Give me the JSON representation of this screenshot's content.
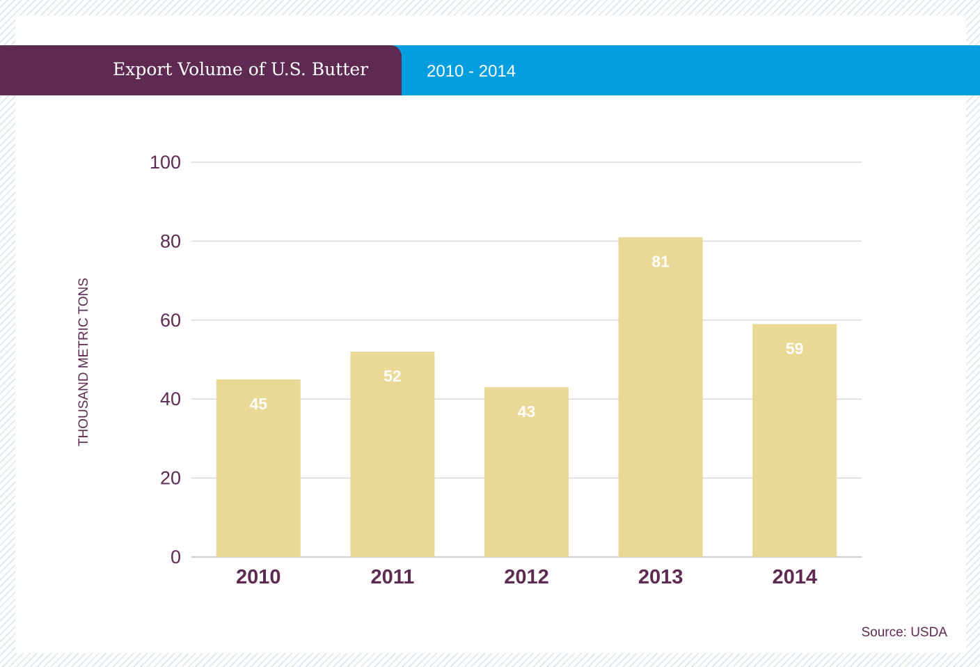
{
  "header": {
    "title": "Export Volume of U.S. Butter",
    "subtitle": "2010 - 2014"
  },
  "source": "Source: USDA",
  "colors": {
    "title_band": "#5e2a51",
    "subtitle_band": "#009ede",
    "bar": "#e9d896",
    "bar_label": "#ffffff",
    "category_label": "#5e2a51",
    "axis_text": "#5e2a51",
    "gridline": "#d9d9d9"
  },
  "chart_data": {
    "type": "bar",
    "title": "Export Volume of U.S. Butter",
    "subtitle": "2010 - 2014",
    "categories": [
      "2010",
      "2011",
      "2012",
      "2013",
      "2014"
    ],
    "values": [
      45,
      52,
      43,
      81,
      59
    ],
    "ylabel": "THOUSAND METRIC TONS",
    "xlabel": "",
    "ylim": [
      0,
      100
    ],
    "yticks": [
      0,
      20,
      40,
      60,
      80,
      100
    ],
    "grid": true,
    "data_labels": true
  }
}
